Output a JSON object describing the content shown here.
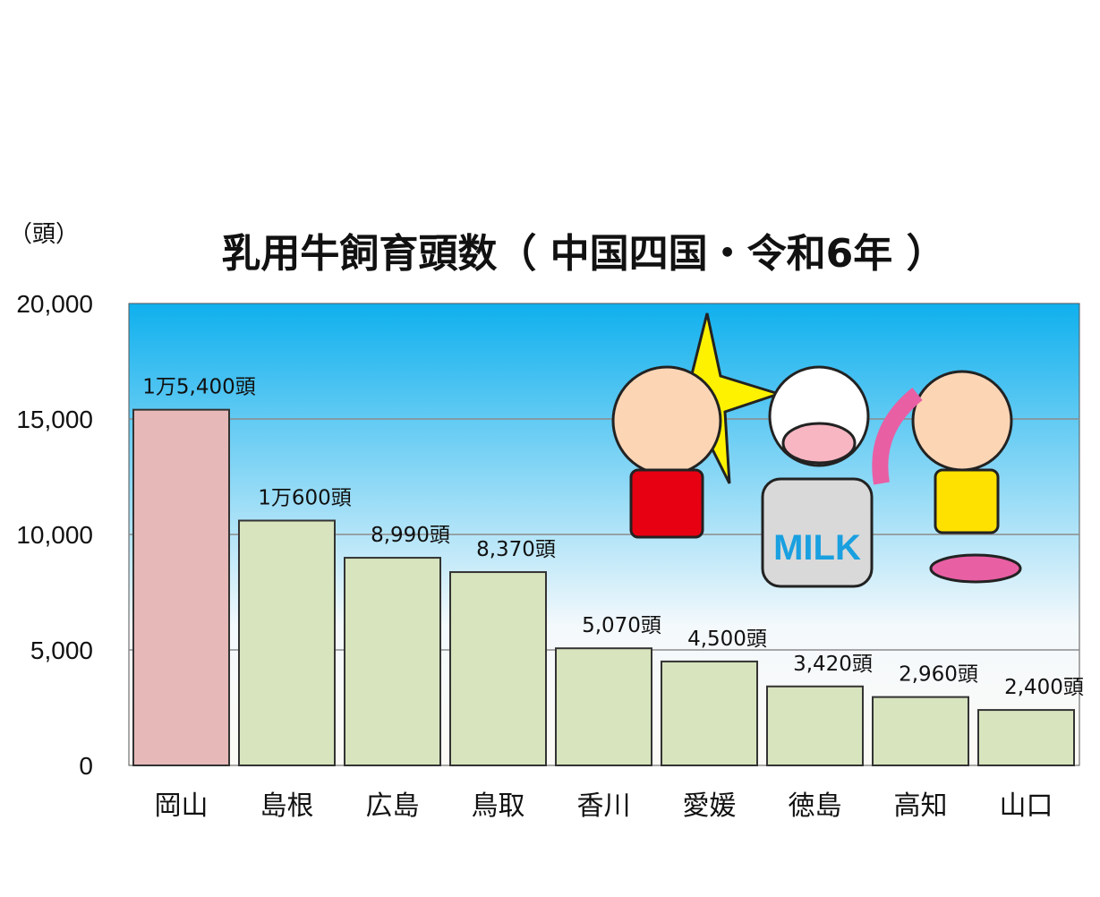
{
  "chart_data": {
    "type": "bar",
    "title": "乳用牛飼育頭数（ 中国四国・令和6年 ）",
    "unit_label": "（頭）",
    "categories": [
      "岡山",
      "島根",
      "広島",
      "鳥取",
      "香川",
      "愛媛",
      "徳島",
      "高知",
      "山口"
    ],
    "values": [
      15400,
      10600,
      8990,
      8370,
      5070,
      4500,
      3420,
      2960,
      2400
    ],
    "data_labels": [
      "1万5,400頭",
      "1万600頭",
      "8,990頭",
      "8,370頭",
      "5,070頭",
      "4,500頭",
      "3,420頭",
      "2,960頭",
      "2,400頭"
    ],
    "ylim": [
      0,
      20000
    ],
    "yticks": [
      0,
      5000,
      10000,
      15000,
      20000
    ],
    "ytick_labels": [
      "0",
      "5,000",
      "10,000",
      "15,000",
      "20,000"
    ],
    "grid": true,
    "colors": {
      "highlight_bar": "#e6b9b8",
      "bar": "#d7e4bd",
      "bar_border": "#333333",
      "background_top": "#0fb0ee",
      "background_bottom": "#ffffff",
      "grid": "#8c8c8c"
    },
    "illustration": {
      "milk_can_text": "MILK"
    }
  }
}
